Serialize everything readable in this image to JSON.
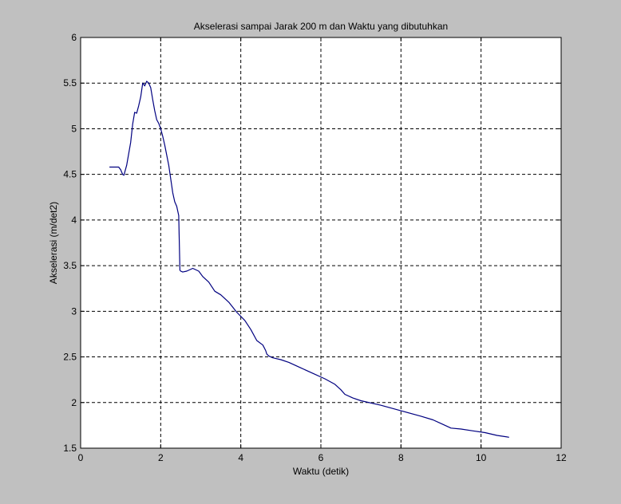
{
  "chart_data": {
    "type": "line",
    "title": "Akselerasi sampai Jarak 200 m dan Waktu yang dibutuhkan",
    "xlabel": "Waktu (detik)",
    "ylabel": "Akselerasi (m/det2)",
    "xlim": [
      0,
      12
    ],
    "ylim": [
      1.5,
      6
    ],
    "xticks": [
      "0",
      "2",
      "4",
      "6",
      "8",
      "10",
      "12"
    ],
    "yticks": [
      "1.5",
      "2",
      "2.5",
      "3",
      "3.5",
      "4",
      "4.5",
      "5",
      "5.5",
      "6"
    ],
    "grid": true,
    "background": "#c0c0c0",
    "plot_background": "#ffffff",
    "line_color": "#000080",
    "series": [
      {
        "x": [
          0.72,
          0.95,
          1.0,
          1.05,
          1.08,
          1.15,
          1.25,
          1.3,
          1.35,
          1.4,
          1.45,
          1.5,
          1.55,
          1.6,
          1.65,
          1.7,
          1.75,
          1.8,
          1.85,
          1.9,
          1.95,
          2.0,
          2.05,
          2.1,
          2.2,
          2.3,
          2.35,
          2.4,
          2.45,
          2.48,
          2.5,
          2.55,
          2.65,
          2.8,
          2.95,
          3.05,
          3.2,
          3.35,
          3.5,
          3.7,
          3.9,
          4.1,
          4.25,
          4.4,
          4.55,
          4.62,
          4.65,
          4.7,
          4.8,
          5.0,
          5.2,
          5.5,
          5.8,
          6.1,
          6.35,
          6.5,
          6.6,
          6.8,
          7.0,
          7.5,
          8.0,
          8.5,
          8.8,
          9.0,
          9.25,
          9.5,
          9.8,
          10.1,
          10.4,
          10.7
        ],
        "y": [
          4.58,
          4.58,
          4.55,
          4.5,
          4.49,
          4.6,
          4.85,
          5.05,
          5.18,
          5.17,
          5.25,
          5.35,
          5.5,
          5.47,
          5.52,
          5.5,
          5.45,
          5.32,
          5.2,
          5.1,
          5.06,
          5.0,
          4.92,
          4.82,
          4.6,
          4.3,
          4.2,
          4.15,
          4.05,
          3.45,
          3.44,
          3.43,
          3.44,
          3.47,
          3.44,
          3.38,
          3.32,
          3.22,
          3.18,
          3.1,
          2.99,
          2.9,
          2.8,
          2.68,
          2.63,
          2.57,
          2.53,
          2.51,
          2.49,
          2.47,
          2.44,
          2.38,
          2.32,
          2.26,
          2.2,
          2.14,
          2.09,
          2.05,
          2.02,
          1.97,
          1.91,
          1.85,
          1.81,
          1.77,
          1.72,
          1.71,
          1.69,
          1.67,
          1.64,
          1.62
        ]
      }
    ]
  }
}
